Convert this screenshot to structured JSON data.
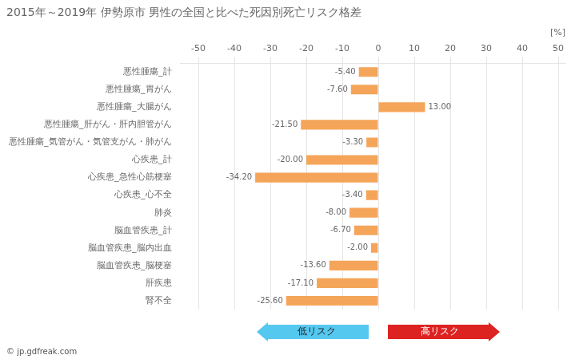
{
  "chart_data": {
    "type": "bar",
    "orientation": "horizontal",
    "title": "2015年～2019年 伊勢原市 男性の全国と比べた死因別死亡リスク格差",
    "xlabel": "[%]",
    "categories": [
      "悪性腫瘍_計",
      "悪性腫瘍_胃がん",
      "悪性腫瘍_大腸がん",
      "悪性腫瘍_肝がん・肝内胆管がん",
      "悪性腫瘍_気管がん・気管支がん・肺がん",
      "心疾患_計",
      "心疾患_急性心筋梗塞",
      "心疾患_心不全",
      "肺炎",
      "脳血管疾患_計",
      "脳血管疾患_脳内出血",
      "脳血管疾患_脳梗塞",
      "肝疾患",
      "腎不全"
    ],
    "values": [
      -5.4,
      -7.6,
      13.0,
      -21.5,
      -3.3,
      -20.0,
      -34.2,
      -3.4,
      -8.0,
      -6.7,
      -2.0,
      -13.6,
      -17.1,
      -25.6
    ],
    "value_labels": [
      "-5.40",
      "-7.60",
      "13.00",
      "-21.50",
      "-3.30",
      "-20.00",
      "-34.20",
      "-3.40",
      "-8.00",
      "-6.70",
      "-2.00",
      "-13.60",
      "-17.10",
      "-25.60"
    ],
    "data_labels": true,
    "color": "#f5a55a",
    "xlim": [
      -55,
      52
    ],
    "xticks": [
      -50,
      -40,
      -30,
      -20,
      -10,
      0,
      10,
      20,
      30,
      40,
      50
    ],
    "grid": true,
    "annotations": [
      {
        "text": "低リスク",
        "color": "#55c8f0"
      },
      {
        "text": "高リスク",
        "color": "#dd2222"
      },
      {
        "text": "© jp.gdfreak.com"
      }
    ]
  }
}
